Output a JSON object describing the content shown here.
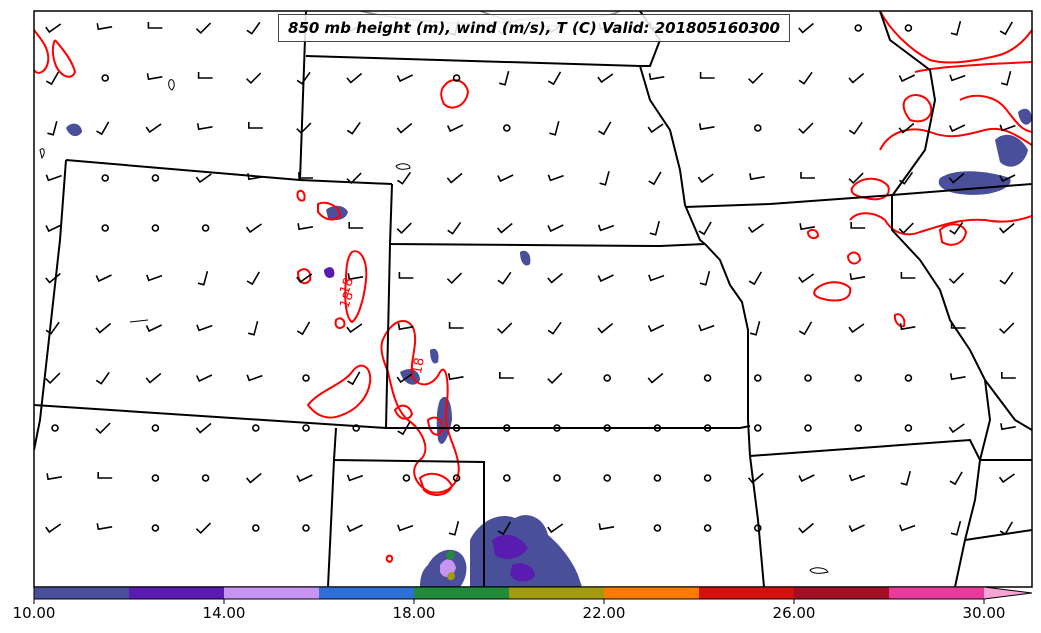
{
  "title": "850 mb height (m), wind (m/s), T (C) Valid: 201805160300",
  "contour_labels": [
    {
      "text": "18",
      "color": "#ff0000"
    },
    {
      "text": "18",
      "color": "#ff0000"
    },
    {
      "text": "18",
      "color": "#ff0000"
    }
  ],
  "colorbar": {
    "tick_labels": [
      "10.00",
      "14.00",
      "18.00",
      "22.00",
      "26.00",
      "30.00"
    ],
    "colors": [
      "#4a4f9a",
      "#5a1cb0",
      "#c794f2",
      "#2e6fd8",
      "#238a3c",
      "#a39b0f",
      "#ff7a00",
      "#d60f0f",
      "#a30f25",
      "#ea3b9c",
      "#f7a3d3"
    ]
  },
  "colors": {
    "temperature_contour": "#ff0000",
    "state_borders": "#000000",
    "fill_low": "#4a4f9a",
    "fill_mid": "#5a1cb0",
    "fill_high": "#c794f2"
  }
}
